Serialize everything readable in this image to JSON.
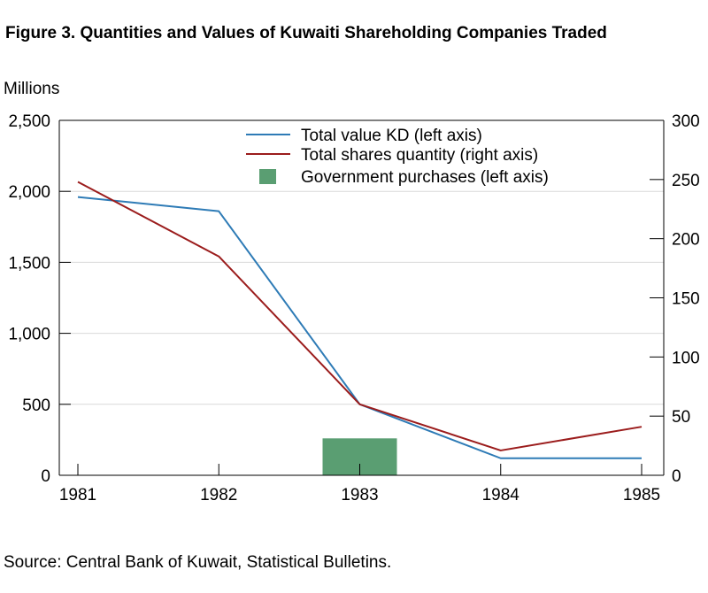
{
  "figure": {
    "title": "Figure 3. Quantities and Values of Kuwaiti Shareholding Companies Traded",
    "left_unit": "Millions",
    "source": "Source: Central Bank of Kuwait, Statistical Bulletins."
  },
  "chart_data": {
    "type": "line",
    "categories": [
      "1981",
      "1982",
      "1983",
      "1984",
      "1985"
    ],
    "left_axis": {
      "ylim": [
        0,
        2500
      ],
      "ticks": [
        "0",
        "500",
        "1,000",
        "1,500",
        "2,000",
        "2,500"
      ],
      "tick_values": [
        0,
        500,
        1000,
        1500,
        2000,
        2500
      ]
    },
    "right_axis": {
      "ylim": [
        0,
        300
      ],
      "ticks": [
        "0",
        "50",
        "100",
        "150",
        "200",
        "250",
        "300"
      ],
      "tick_values": [
        0,
        50,
        100,
        150,
        200,
        250,
        300
      ]
    },
    "grid": true,
    "legend_position": "top-center",
    "series": [
      {
        "name": "Total value KD (left axis)",
        "kind": "line",
        "axis": "left",
        "color": "#2e7bb6",
        "values": [
          1960,
          1860,
          500,
          120,
          120
        ]
      },
      {
        "name": "Total shares quantity (right axis)",
        "kind": "line",
        "axis": "right",
        "color": "#9b1c1c",
        "values": [
          248,
          185,
          60,
          21,
          41
        ]
      },
      {
        "name": "Government purchases (left axis)",
        "kind": "bar",
        "axis": "left",
        "color": "#5a9e72",
        "values": [
          null,
          null,
          260,
          null,
          null
        ]
      }
    ]
  }
}
